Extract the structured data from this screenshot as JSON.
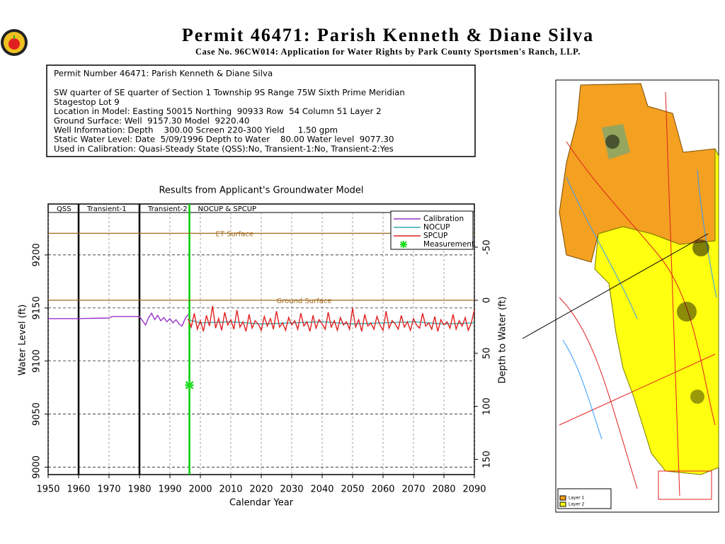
{
  "header": {
    "title": "Permit 46471:  Parish Kenneth & Diane Silva",
    "subtitle": "Case No. 96CW014: Application for Water Rights by Park County Sportsmen's Ranch, LLP."
  },
  "info": {
    "lines": [
      "Permit Number 46471: Parish Kenneth & Diane Silva",
      "SW quarter of SE quarter of Section 1 Township 9S Range 75W Sixth Prime Meridian",
      "Stagestop Lot 9",
      "Location in Model: Easting 50015 Northing  90933 Row  54 Column 51 Layer 2",
      "Ground Surface: Well  9157.30 Model  9220.40",
      "Well Information: Depth    300.00 Screen 220-300 Yield     1.50 gpm",
      "Static Water Level: Date  5/09/1996 Depth to Water    80.00 Water level  9077.30",
      "Used in Calibration: Quasi-Steady State (QSS):No, Transient-1:No, Transient-2:Yes"
    ]
  },
  "chart_data": {
    "type": "line",
    "title": "Results from Applicant's Groundwater Model",
    "x_label": "Calendar Year",
    "y_label": "Water Level (ft)",
    "y2_label": "Depth to Water (ft)",
    "xlim": [
      1950,
      2090
    ],
    "xticks": [
      1950,
      1960,
      1970,
      1980,
      1990,
      2000,
      2010,
      2020,
      2030,
      2040,
      2050,
      2060,
      2070,
      2080,
      2090
    ],
    "ylim": [
      8993,
      9248
    ],
    "yticks": [
      9000,
      9050,
      9100,
      9150,
      9200
    ],
    "y2lim": [
      164.3,
      -90.7
    ],
    "y2ticks": [
      -50,
      0,
      50,
      100,
      150
    ],
    "grid": true,
    "periods": [
      {
        "label": "QSS",
        "start": 1950,
        "end": 1960
      },
      {
        "label": "Transient-1",
        "start": 1960,
        "end": 1980
      },
      {
        "label": "Transient-2",
        "start": 1980,
        "end": 1996.4
      },
      {
        "label": "NOCUP & SPCUP",
        "start": 1996.4,
        "end": 2090
      }
    ],
    "boundaries": [
      {
        "x": 1960,
        "color": "#000000"
      },
      {
        "x": 1980,
        "color": "#000000"
      },
      {
        "x": 1996.4,
        "color": "#00cc00"
      }
    ],
    "reference_lines": [
      {
        "label": "ET Surface",
        "value": 9220.4,
        "color": "#a06a1c",
        "label_x": 2005
      },
      {
        "label": "Ground Surface",
        "value": 9157.3,
        "color": "#a06a1c",
        "label_x": 2025
      }
    ],
    "series": [
      {
        "name": "Calibration",
        "color": "#9933cc",
        "x": [
          1950,
          1960,
          1970,
          1971,
          1980,
          1981,
          1982,
          1983,
          1984,
          1985,
          1986,
          1987,
          1988,
          1989,
          1990,
          1991,
          1992,
          1993,
          1994,
          1995,
          1996
        ],
        "values": [
          9140,
          9140,
          9140.5,
          9142,
          9142,
          9138,
          9134,
          9141,
          9145,
          9139,
          9143,
          9138,
          9141,
          9137,
          9140,
          9136,
          9139,
          9135,
          9133,
          9140,
          9144
        ]
      },
      {
        "name": "NOCUP",
        "color": "#33aaaa",
        "x": [
          1996,
          2000,
          2010,
          2020,
          2030,
          2040,
          2050,
          2060,
          2070,
          2080,
          2090
        ],
        "values": [
          9139,
          9136,
          9137,
          9135,
          9136,
          9137,
          9135,
          9136,
          9137,
          9135,
          9136
        ]
      },
      {
        "name": "SPCUP",
        "color": "#e02020",
        "x": [
          1996,
          1997,
          1998,
          1999,
          2000,
          2001,
          2002,
          2003,
          2004,
          2005,
          2006,
          2007,
          2008,
          2009,
          2010,
          2011,
          2012,
          2013,
          2014,
          2015,
          2016,
          2017,
          2018,
          2019,
          2020,
          2021,
          2022,
          2023,
          2024,
          2025,
          2026,
          2027,
          2028,
          2029,
          2030,
          2031,
          2032,
          2033,
          2034,
          2035,
          2036,
          2037,
          2038,
          2039,
          2040,
          2041,
          2042,
          2043,
          2044,
          2045,
          2046,
          2047,
          2048,
          2049,
          2050,
          2051,
          2052,
          2053,
          2054,
          2055,
          2056,
          2057,
          2058,
          2059,
          2060,
          2061,
          2062,
          2063,
          2064,
          2065,
          2066,
          2067,
          2068,
          2069,
          2070,
          2071,
          2072,
          2073,
          2074,
          2075,
          2076,
          2077,
          2078,
          2079,
          2080,
          2081,
          2082,
          2083,
          2084,
          2085,
          2086,
          2087,
          2088,
          2089,
          2090
        ],
        "values": [
          9140,
          9132,
          9145,
          9130,
          9138,
          9128,
          9143,
          9133,
          9152,
          9131,
          9140,
          9129,
          9146,
          9134,
          9139,
          9130,
          9148,
          9132,
          9137,
          9128,
          9144,
          9131,
          9138,
          9135,
          9129,
          9142,
          9133,
          9140,
          9130,
          9147,
          9132,
          9136,
          9129,
          9141,
          9134,
          9138,
          9130,
          9145,
          9133,
          9137,
          9128,
          9143,
          9131,
          9139,
          9135,
          9130,
          9146,
          9132,
          9138,
          9129,
          9141,
          9134,
          9137,
          9130,
          9150,
          9132,
          9139,
          9128,
          9144,
          9133,
          9136,
          9130,
          9142,
          9134,
          9129,
          9147,
          9131,
          9138,
          9135,
          9130,
          9143,
          9132,
          9137,
          9129,
          9140,
          9134,
          9131,
          9145,
          9133,
          9136,
          9130,
          9142,
          9128,
          9139,
          9134,
          9137,
          9131,
          9144,
          9130,
          9138,
          9133,
          9141,
          9129,
          9136,
          9148
        ]
      },
      {
        "name": "Measurement",
        "color": "#22dd22",
        "marker": "star",
        "x": [
          1996.4
        ],
        "values": [
          9077.3
        ]
      }
    ]
  },
  "map": {
    "legend": [
      "Layer 1",
      "Layer 2"
    ]
  }
}
